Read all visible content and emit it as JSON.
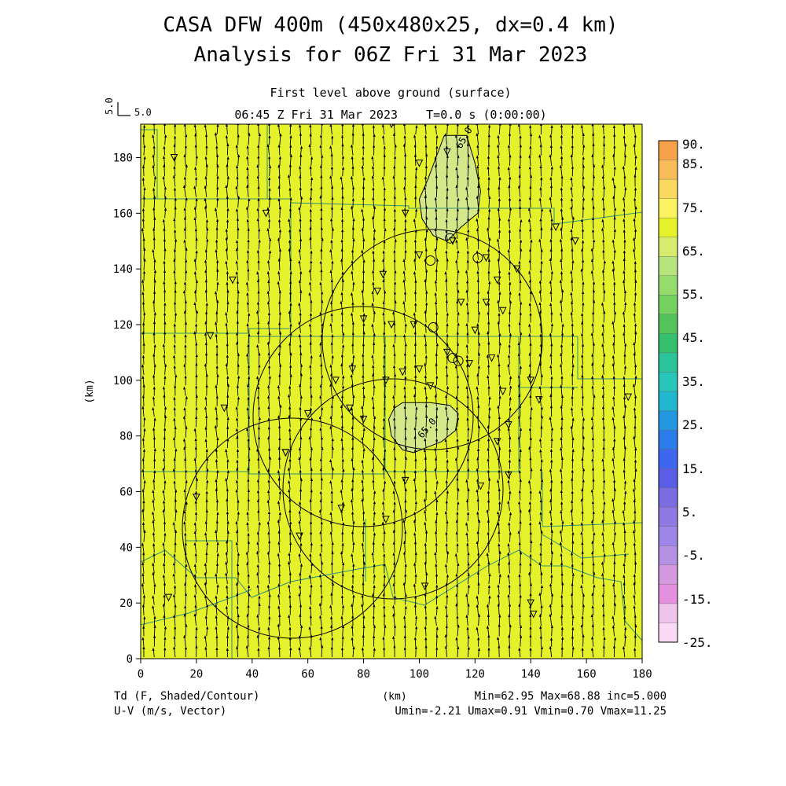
{
  "header": {
    "title_line1": "CASA DFW 400m (450x480x25, dx=0.4 km)",
    "title_line2": "Analysis for 06Z Fri 31 Mar 2023",
    "subtitle": "First level above ground (surface)",
    "time_line": "06:45 Z Fri 31 Mar 2023    T=0.0 s (0:00:00)"
  },
  "vector_key": {
    "value_vertical": "5.0",
    "value_horizontal": "5.0"
  },
  "footer": {
    "left_line1": "Td (F, Shaded/Contour)",
    "left_line2": "U-V (m/s, Vector)",
    "x_unit": "(km)",
    "stats_line1": "Min=62.95 Max=68.88 inc=5.000",
    "stats_line2": "Umin=-2.21 Umax=0.91 Vmin=0.70 Vmax=11.25"
  },
  "colors": {
    "field_fill": "#e5f22b",
    "contour_fill": "#d4e88a",
    "map_lines": "#2f8f7a",
    "contour_lines": "#000000"
  },
  "chart_data": {
    "type": "heatmap",
    "x_axis": {
      "label": "(km)",
      "range": [
        0,
        180
      ],
      "ticks": [
        "0",
        "20",
        "40",
        "60",
        "80",
        "100",
        "120",
        "140",
        "160",
        "180"
      ]
    },
    "y_axis": {
      "label": "(km)",
      "range": [
        0,
        192
      ],
      "ticks": [
        "0",
        "20",
        "40",
        "60",
        "80",
        "100",
        "120",
        "140",
        "160",
        "180"
      ]
    },
    "contour_labels": [
      "65.0",
      "65.0"
    ],
    "contours": [
      {
        "label": "65.0",
        "polygon": [
          [
            109,
            188
          ],
          [
            117,
            188
          ],
          [
            120,
            178
          ],
          [
            122,
            168
          ],
          [
            121,
            160
          ],
          [
            115,
            155
          ],
          [
            110,
            150
          ],
          [
            105,
            152
          ],
          [
            101,
            158
          ],
          [
            100,
            165
          ],
          [
            103,
            172
          ],
          [
            106,
            180
          ]
        ]
      },
      {
        "label": "65.0",
        "polygon": [
          [
            94,
            92
          ],
          [
            104,
            92
          ],
          [
            111,
            91
          ],
          [
            114,
            88
          ],
          [
            113,
            82
          ],
          [
            108,
            78
          ],
          [
            103,
            76
          ],
          [
            98,
            74
          ],
          [
            94,
            75
          ],
          [
            90,
            80
          ],
          [
            89,
            86
          ],
          [
            91,
            90
          ]
        ]
      }
    ],
    "colorbar": {
      "labels": [
        "90.",
        "85.",
        "75.",
        "65.",
        "55.",
        "45.",
        "35.",
        "25.",
        "15.",
        "5.",
        "-5.",
        "-15.",
        "-25."
      ],
      "colors": [
        "#f7a14a",
        "#f8bd5a",
        "#f9da5e",
        "#fbf25f",
        "#e5f22b",
        "#d7ec6e",
        "#b8e47d",
        "#96dc6d",
        "#74d05f",
        "#53c45b",
        "#34c06c",
        "#2cc49a",
        "#27c6b8",
        "#22b7d0",
        "#2298df",
        "#2b7de9",
        "#3f66ef",
        "#5a5de6",
        "#7b6de0",
        "#8f79e3",
        "#9f87e9",
        "#b591e3",
        "#d499df",
        "#e58fdf",
        "#f0c3ec",
        "#fbdaf8"
      ]
    },
    "vectors": {
      "u_range": [
        -2.21,
        0.91
      ],
      "v_range": [
        0.7,
        11.25
      ]
    },
    "grid": false
  }
}
